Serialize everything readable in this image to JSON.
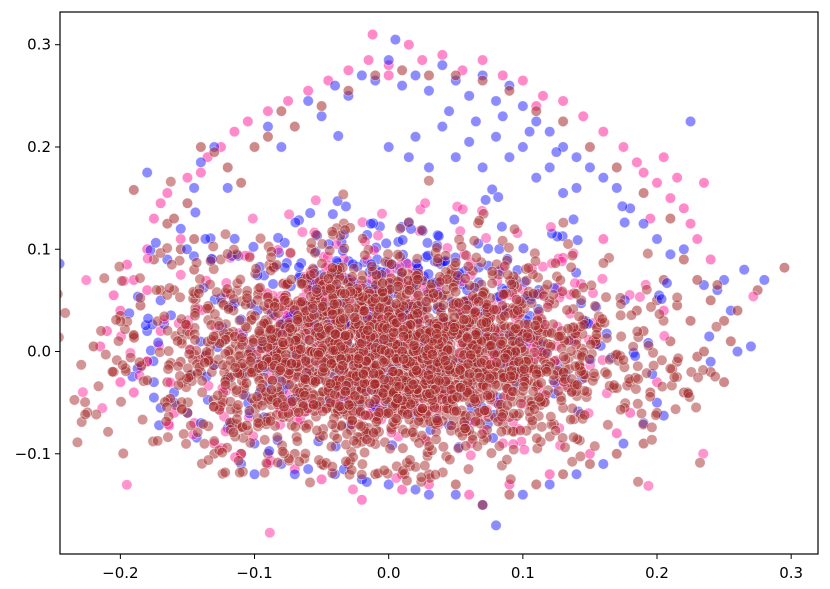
{
  "chart_data": {
    "type": "scatter",
    "title": "",
    "xlabel": "",
    "ylabel": "",
    "xlim": [
      -0.245,
      0.32
    ],
    "ylim": [
      -0.198,
      0.332
    ],
    "x_ticks": [
      -0.2,
      -0.1,
      0.0,
      0.1,
      0.2,
      0.3
    ],
    "x_tick_labels": [
      "−0.2",
      "−0.1",
      "0.0",
      "0.1",
      "0.2",
      "0.3"
    ],
    "y_ticks": [
      -0.1,
      0.0,
      0.1,
      0.2,
      0.3
    ],
    "y_tick_labels": [
      "−0.1",
      "0.0",
      "0.1",
      "0.2",
      "0.3"
    ],
    "grid": false,
    "legend": "none",
    "series": [
      {
        "color": "#ff1493",
        "opacity": 0.5,
        "points": [
          [
            -0.215,
            0.005
          ],
          [
            -0.21,
            0.02
          ],
          [
            -0.205,
            0.055
          ],
          [
            -0.2,
            -0.03
          ],
          [
            -0.195,
            0.085
          ],
          [
            -0.19,
            0.07
          ],
          [
            -0.185,
            -0.015
          ],
          [
            -0.18,
            0.1
          ],
          [
            -0.175,
            0.13
          ],
          [
            -0.17,
            0.145
          ],
          [
            -0.165,
            0.155
          ],
          [
            -0.16,
            -0.06
          ],
          [
            -0.155,
            0.11
          ],
          [
            -0.15,
            0.17
          ],
          [
            -0.145,
            -0.07
          ],
          [
            -0.14,
            0.175
          ],
          [
            -0.135,
            0.19
          ],
          [
            -0.125,
            0.2
          ],
          [
            -0.115,
            0.215
          ],
          [
            -0.105,
            0.225
          ],
          [
            -0.09,
            0.235
          ],
          [
            -0.075,
            0.245
          ],
          [
            -0.06,
            0.255
          ],
          [
            -0.045,
            0.265
          ],
          [
            -0.03,
            0.275
          ],
          [
            -0.015,
            0.285
          ],
          [
            -0.012,
            0.31
          ],
          [
            0.0,
            0.28
          ],
          [
            0.015,
            0.3
          ],
          [
            0.025,
            0.285
          ],
          [
            0.04,
            0.29
          ],
          [
            0.055,
            0.275
          ],
          [
            0.07,
            0.285
          ],
          [
            0.085,
            0.27
          ],
          [
            0.1,
            0.265
          ],
          [
            0.115,
            0.25
          ],
          [
            0.13,
            0.245
          ],
          [
            0.145,
            0.23
          ],
          [
            0.16,
            0.215
          ],
          [
            0.175,
            0.2
          ],
          [
            0.19,
            0.175
          ],
          [
            0.2,
            0.165
          ],
          [
            0.21,
            0.15
          ],
          [
            0.22,
            0.14
          ],
          [
            0.225,
            0.125
          ],
          [
            0.23,
            0.11
          ],
          [
            0.235,
            0.165
          ],
          [
            0.24,
            0.09
          ],
          [
            0.205,
            0.19
          ],
          [
            0.215,
            0.17
          ],
          [
            0.185,
            0.185
          ],
          [
            0.195,
            0.13
          ],
          [
            -0.02,
            -0.145
          ],
          [
            0.01,
            -0.135
          ],
          [
            -0.05,
            -0.125
          ],
          [
            0.03,
            -0.13
          ],
          [
            0.06,
            -0.14
          ],
          [
            0.09,
            -0.13
          ],
          [
            0.12,
            -0.12
          ],
          [
            0.15,
            -0.1
          ],
          [
            0.17,
            -0.08
          ],
          [
            0.18,
            -0.06
          ],
          [
            -0.13,
            -0.09
          ],
          [
            -0.11,
            -0.1
          ],
          [
            -0.09,
            -0.11
          ],
          [
            -0.07,
            -0.115
          ],
          [
            0.2,
            -0.03
          ],
          [
            0.205,
            0.04
          ],
          [
            0.16,
            0.11
          ],
          [
            -0.2,
            0.04
          ],
          [
            -0.19,
            -0.04
          ],
          [
            -0.18,
            0.06
          ],
          [
            -0.17,
            0.02
          ],
          [
            0.11,
            0.24
          ],
          [
            0.0,
            0.27
          ]
        ]
      },
      {
        "color": "#0000ff",
        "opacity": 0.45,
        "points": [
          [
            -0.18,
            0.175
          ],
          [
            -0.175,
            -0.045
          ],
          [
            -0.17,
            -0.055
          ],
          [
            -0.165,
            0.09
          ],
          [
            -0.16,
            -0.05
          ],
          [
            -0.155,
            0.12
          ],
          [
            -0.15,
            -0.06
          ],
          [
            -0.145,
            0.16
          ],
          [
            -0.14,
            0.185
          ],
          [
            -0.13,
            0.2
          ],
          [
            -0.12,
            0.16
          ],
          [
            -0.11,
            -0.11
          ],
          [
            -0.1,
            -0.12
          ],
          [
            -0.09,
            0.22
          ],
          [
            -0.08,
            0.2
          ],
          [
            -0.07,
            -0.12
          ],
          [
            -0.06,
            0.245
          ],
          [
            -0.05,
            0.23
          ],
          [
            -0.04,
            0.26
          ],
          [
            -0.03,
            0.25
          ],
          [
            -0.02,
            0.27
          ],
          [
            -0.01,
            0.265
          ],
          [
            0.0,
            0.285
          ],
          [
            0.005,
            0.305
          ],
          [
            0.01,
            0.26
          ],
          [
            0.02,
            0.27
          ],
          [
            0.03,
            0.255
          ],
          [
            0.04,
            0.28
          ],
          [
            0.05,
            0.265
          ],
          [
            0.06,
            0.25
          ],
          [
            0.07,
            0.27
          ],
          [
            0.08,
            0.245
          ],
          [
            0.09,
            0.26
          ],
          [
            0.1,
            0.24
          ],
          [
            0.11,
            0.225
          ],
          [
            0.12,
            0.215
          ],
          [
            0.13,
            0.2
          ],
          [
            0.14,
            0.19
          ],
          [
            0.15,
            0.18
          ],
          [
            0.16,
            0.17
          ],
          [
            0.17,
            0.16
          ],
          [
            0.18,
            0.14
          ],
          [
            0.19,
            0.125
          ],
          [
            0.2,
            0.11
          ],
          [
            0.21,
            0.095
          ],
          [
            0.22,
            0.1
          ],
          [
            0.225,
            0.225
          ],
          [
            0.235,
            0.065
          ],
          [
            0.25,
            0.07
          ],
          [
            0.265,
            0.08
          ],
          [
            0.28,
            0.07
          ],
          [
            0.245,
            0.06
          ],
          [
            0.255,
            0.04
          ],
          [
            0.27,
            0.005
          ],
          [
            0.26,
            0.0
          ],
          [
            0.24,
            -0.01
          ],
          [
            0.2,
            -0.05
          ],
          [
            0.19,
            -0.07
          ],
          [
            0.175,
            -0.09
          ],
          [
            0.16,
            -0.11
          ],
          [
            0.14,
            -0.12
          ],
          [
            0.12,
            -0.13
          ],
          [
            0.1,
            -0.14
          ],
          [
            0.08,
            -0.17
          ],
          [
            0.07,
            -0.15
          ],
          [
            0.05,
            -0.14
          ],
          [
            0.03,
            -0.14
          ],
          [
            0.02,
            -0.135
          ],
          [
            0.0,
            -0.13
          ],
          [
            -0.02,
            -0.125
          ],
          [
            -0.04,
            -0.12
          ],
          [
            -0.06,
            -0.115
          ],
          [
            -0.08,
            -0.11
          ],
          [
            -0.1,
            -0.09
          ],
          [
            -0.12,
            -0.075
          ],
          [
            -0.14,
            -0.07
          ],
          [
            -0.16,
            -0.04
          ],
          [
            -0.175,
            -0.03
          ],
          [
            -0.18,
            0.02
          ],
          [
            -0.17,
            0.05
          ],
          [
            0.0,
            0.2
          ],
          [
            0.02,
            0.21
          ],
          [
            0.04,
            0.22
          ],
          [
            0.06,
            0.205
          ],
          [
            0.08,
            0.21
          ],
          [
            0.1,
            0.2
          ],
          [
            0.12,
            0.18
          ],
          [
            0.14,
            0.16
          ],
          [
            0.09,
            0.19
          ],
          [
            0.05,
            0.19
          ],
          [
            0.03,
            0.18
          ],
          [
            0.07,
            0.18
          ],
          [
            0.11,
            0.17
          ],
          [
            0.13,
            0.155
          ],
          [
            0.015,
            0.19
          ],
          [
            0.045,
            0.235
          ],
          [
            0.085,
            0.23
          ],
          [
            0.065,
            0.225
          ],
          [
            0.105,
            0.215
          ],
          [
            0.125,
            0.195
          ]
        ]
      },
      {
        "color": "#a52a2a",
        "opacity": 0.55,
        "points": [
          [
            -0.22,
            0.005
          ],
          [
            -0.205,
            -0.02
          ],
          [
            -0.19,
            0.158
          ],
          [
            -0.2,
            0.035
          ],
          [
            -0.185,
            0.045
          ],
          [
            -0.175,
            0.09
          ],
          [
            -0.165,
            0.125
          ],
          [
            -0.16,
            0.13
          ],
          [
            -0.15,
            0.145
          ],
          [
            -0.14,
            0.2
          ],
          [
            -0.13,
            0.195
          ],
          [
            -0.12,
            0.18
          ],
          [
            -0.11,
            0.165
          ],
          [
            -0.1,
            0.2
          ],
          [
            -0.09,
            0.21
          ],
          [
            -0.08,
            0.235
          ],
          [
            -0.07,
            0.22
          ],
          [
            -0.05,
            0.24
          ],
          [
            -0.03,
            0.255
          ],
          [
            -0.01,
            0.27
          ],
          [
            0.01,
            0.275
          ],
          [
            0.03,
            0.27
          ],
          [
            0.05,
            0.27
          ],
          [
            0.07,
            0.265
          ],
          [
            0.09,
            0.255
          ],
          [
            0.11,
            0.235
          ],
          [
            0.13,
            0.225
          ],
          [
            0.15,
            0.2
          ],
          [
            0.17,
            0.18
          ],
          [
            0.19,
            0.155
          ],
          [
            0.21,
            0.13
          ],
          [
            0.22,
            0.09
          ],
          [
            0.23,
            0.07
          ],
          [
            0.24,
            0.05
          ],
          [
            0.25,
            0.03
          ],
          [
            0.26,
            0.04
          ],
          [
            0.275,
            0.06
          ],
          [
            0.295,
            0.082
          ],
          [
            0.25,
            -0.03
          ],
          [
            0.24,
            -0.02
          ],
          [
            0.23,
            -0.005
          ],
          [
            0.22,
            -0.04
          ],
          [
            0.2,
            -0.06
          ],
          [
            0.19,
            -0.09
          ],
          [
            0.17,
            -0.1
          ],
          [
            0.15,
            -0.11
          ],
          [
            0.13,
            -0.12
          ],
          [
            0.11,
            -0.13
          ],
          [
            0.09,
            -0.14
          ],
          [
            0.07,
            -0.15
          ],
          [
            0.05,
            -0.13
          ],
          [
            0.03,
            -0.12
          ],
          [
            0.01,
            -0.12
          ],
          [
            -0.01,
            -0.12
          ],
          [
            -0.03,
            -0.11
          ],
          [
            -0.05,
            -0.11
          ],
          [
            -0.07,
            -0.1
          ],
          [
            -0.09,
            -0.1
          ],
          [
            -0.11,
            -0.1
          ],
          [
            -0.13,
            -0.1
          ],
          [
            -0.15,
            -0.06
          ],
          [
            -0.165,
            -0.03
          ],
          [
            -0.18,
            -0.01
          ],
          [
            -0.19,
            0.015
          ],
          [
            -0.17,
            0.06
          ],
          [
            0.19,
            0.02
          ],
          [
            0.2,
            0.05
          ],
          [
            0.21,
            0.01
          ],
          [
            0.18,
            -0.03
          ],
          [
            0.205,
            0.07
          ],
          [
            0.215,
            -0.01
          ],
          [
            0.195,
            -0.04
          ],
          [
            0.185,
            0.04
          ],
          [
            0.225,
            0.03
          ],
          [
            0.235,
            0.0
          ],
          [
            0.245,
            0.065
          ],
          [
            0.255,
            0.01
          ],
          [
            0.215,
            0.045
          ],
          [
            -0.155,
            0.1
          ],
          [
            -0.145,
            0.08
          ],
          [
            -0.16,
            0.06
          ],
          [
            -0.15,
            0.02
          ],
          [
            -0.14,
            -0.02
          ],
          [
            -0.155,
            -0.01
          ],
          [
            -0.145,
            0.11
          ]
        ]
      }
    ],
    "dense_region": {
      "color": "#a52a2a",
      "center": [
        0.0,
        -0.005
      ],
      "spread": [
        0.082,
        0.048
      ]
    }
  }
}
